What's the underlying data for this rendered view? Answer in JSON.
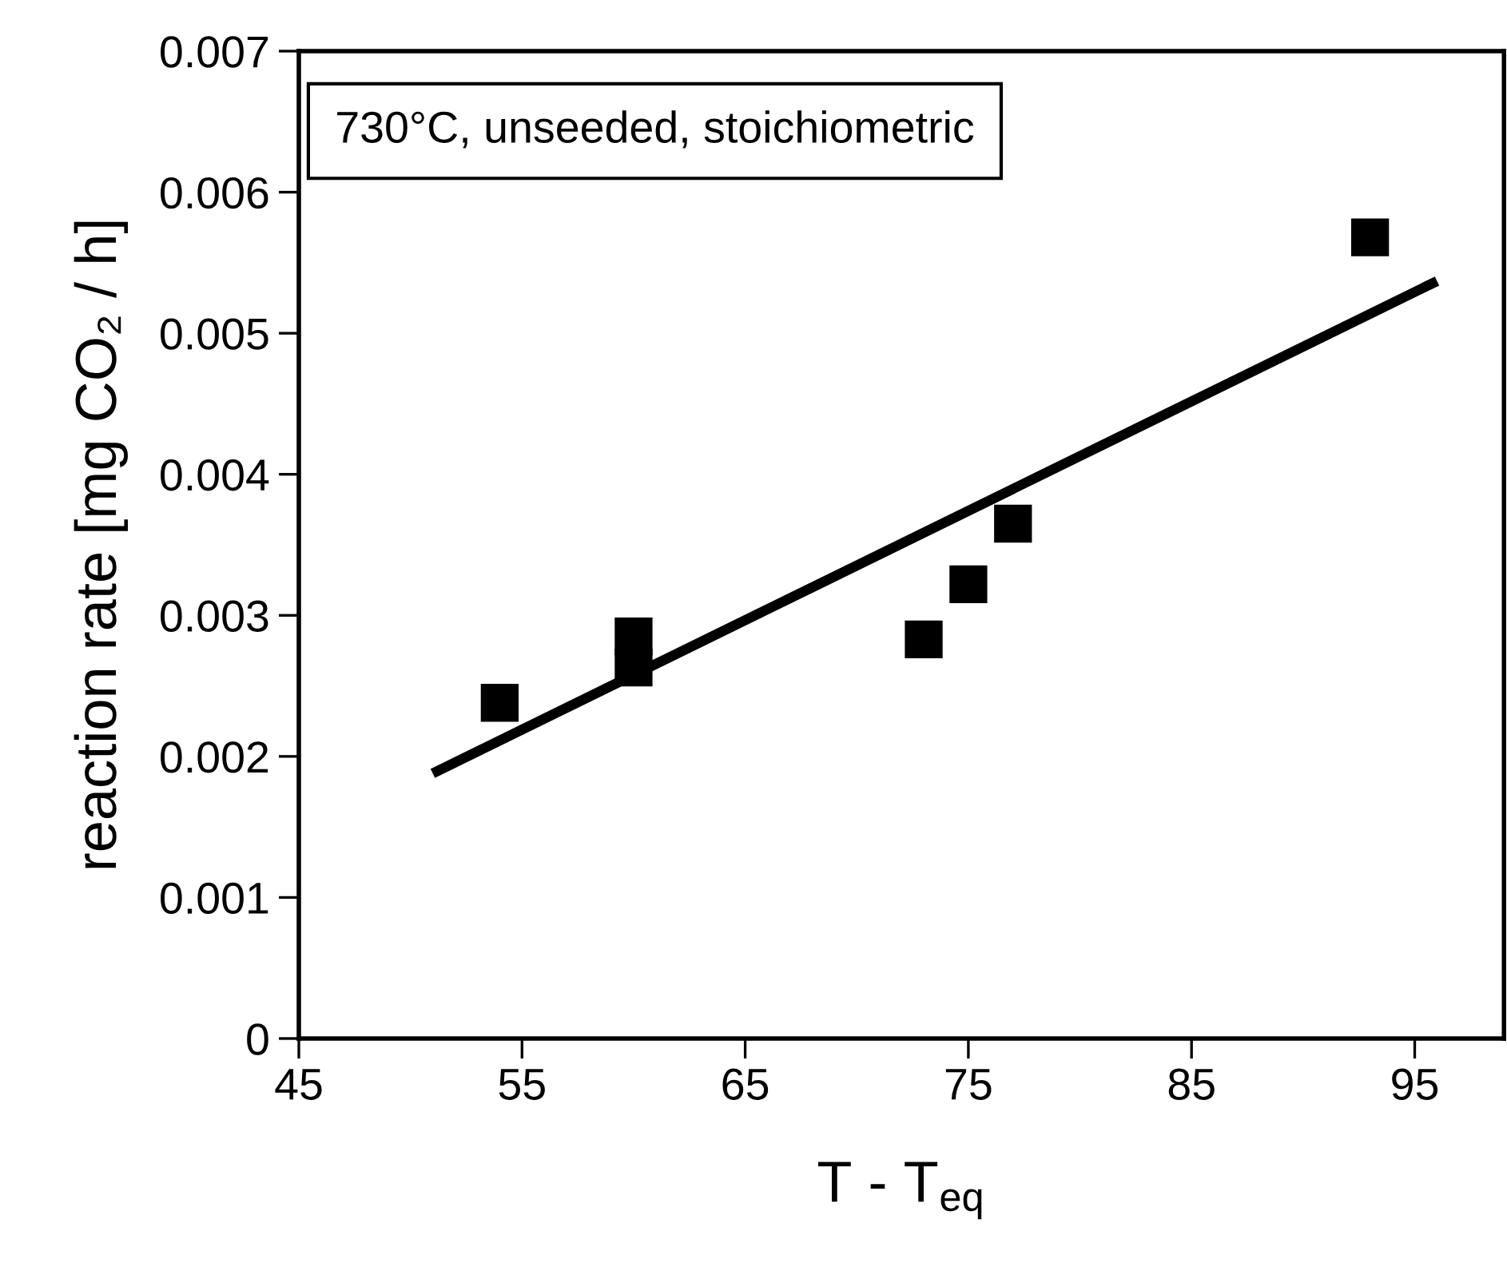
{
  "chart_data": {
    "type": "scatter",
    "xlabel": "T - T$_{eq}$",
    "ylabel": "reaction rate [mg CO₂ / h]",
    "annotations": [
      "730°C, unseeded, stoichiometric"
    ],
    "series": [
      {
        "color": "#000000",
        "marker": "square",
        "x": [
          54,
          60,
          60,
          73,
          75,
          77,
          93
        ],
        "values": [
          0.00238,
          0.00285,
          0.00263,
          0.00283,
          0.00322,
          0.00365,
          0.00568
        ]
      },
      {
        "type": "line",
        "color": "#000000",
        "marker": "none",
        "line_style": "solid",
        "x": [
          51,
          96
        ],
        "values": [
          0.00188,
          0.00537
        ]
      }
    ],
    "xlim": [
      45,
      99
    ],
    "ylim": [
      0,
      0.007
    ],
    "xticks": [
      45,
      55,
      65,
      75,
      85,
      95
    ],
    "yticks": [
      0,
      0.001,
      0.002,
      0.003,
      0.004,
      0.005,
      0.006,
      0.007
    ],
    "grid": false,
    "legend": false
  }
}
